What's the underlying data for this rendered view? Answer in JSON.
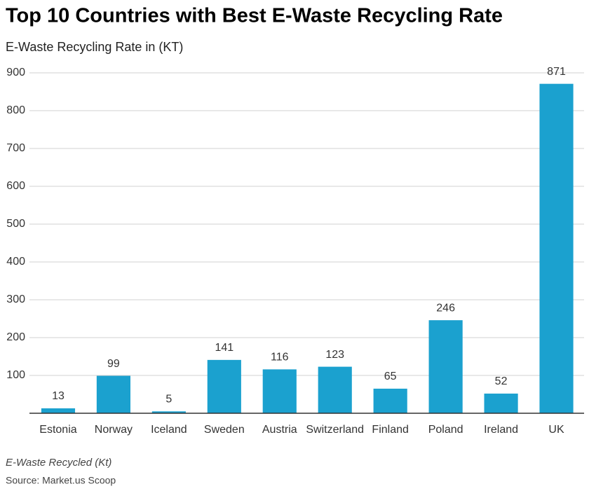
{
  "chart_data": {
    "type": "bar",
    "title": "Top 10 Countries with Best E-Waste Recycling Rate",
    "subtitle": "E-Waste Recycling Rate in (KT)",
    "xlabel": "E-Waste Recycled (Kt)",
    "source": "Source: Market.us Scoop",
    "categories": [
      "Estonia",
      "Norway",
      "Iceland",
      "Sweden",
      "Austria",
      "Switzerland",
      "Finland",
      "Poland",
      "Ireland",
      "UK"
    ],
    "values": [
      13,
      99,
      5,
      141,
      116,
      123,
      65,
      246,
      52,
      871
    ],
    "color": "#1ba1cf",
    "ylim": [
      0,
      900
    ],
    "yticks": [
      100,
      200,
      300,
      400,
      500,
      600,
      700,
      800,
      900
    ],
    "grid": true
  }
}
